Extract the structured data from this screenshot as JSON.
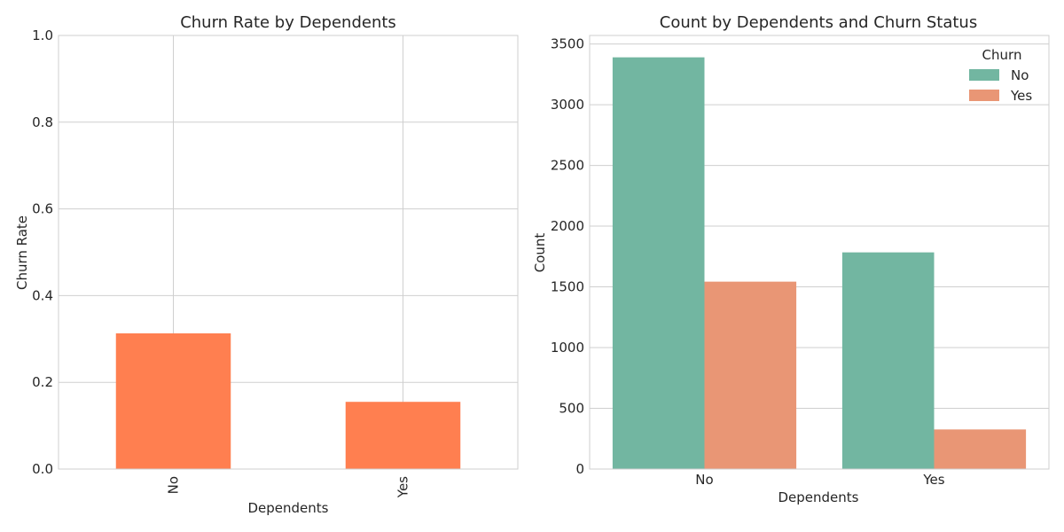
{
  "chart_data": [
    {
      "type": "bar",
      "title": "Churn Rate by Dependents",
      "xlabel": "Dependents",
      "ylabel": "Churn Rate",
      "categories": [
        "No",
        "Yes"
      ],
      "values": [
        0.313,
        0.155
      ],
      "ylim": [
        0,
        1.0
      ],
      "yticks": [
        "0.0",
        "0.2",
        "0.4",
        "0.6",
        "0.8",
        "1.0"
      ],
      "ytick_values": [
        0,
        0.2,
        0.4,
        0.6,
        0.8,
        1.0
      ],
      "color": "#ff7f50",
      "grid": true
    },
    {
      "type": "bar",
      "title": "Count by Dependents and Churn Status",
      "xlabel": "Dependents",
      "ylabel": "Count",
      "categories": [
        "No",
        "Yes"
      ],
      "series": [
        {
          "name": "No",
          "values": [
            3390,
            1784
          ],
          "color": "#72b6a1"
        },
        {
          "name": "Yes",
          "values": [
            1543,
            326
          ],
          "color": "#e99675"
        }
      ],
      "ylim": [
        0,
        3500
      ],
      "yticks": [
        "0",
        "500",
        "1000",
        "1500",
        "2000",
        "2500",
        "3000",
        "3500"
      ],
      "ytick_values": [
        0,
        500,
        1000,
        1500,
        2000,
        2500,
        3000,
        3500
      ],
      "legend": {
        "title": "Churn",
        "placement": "top-right"
      },
      "grid": true
    }
  ]
}
